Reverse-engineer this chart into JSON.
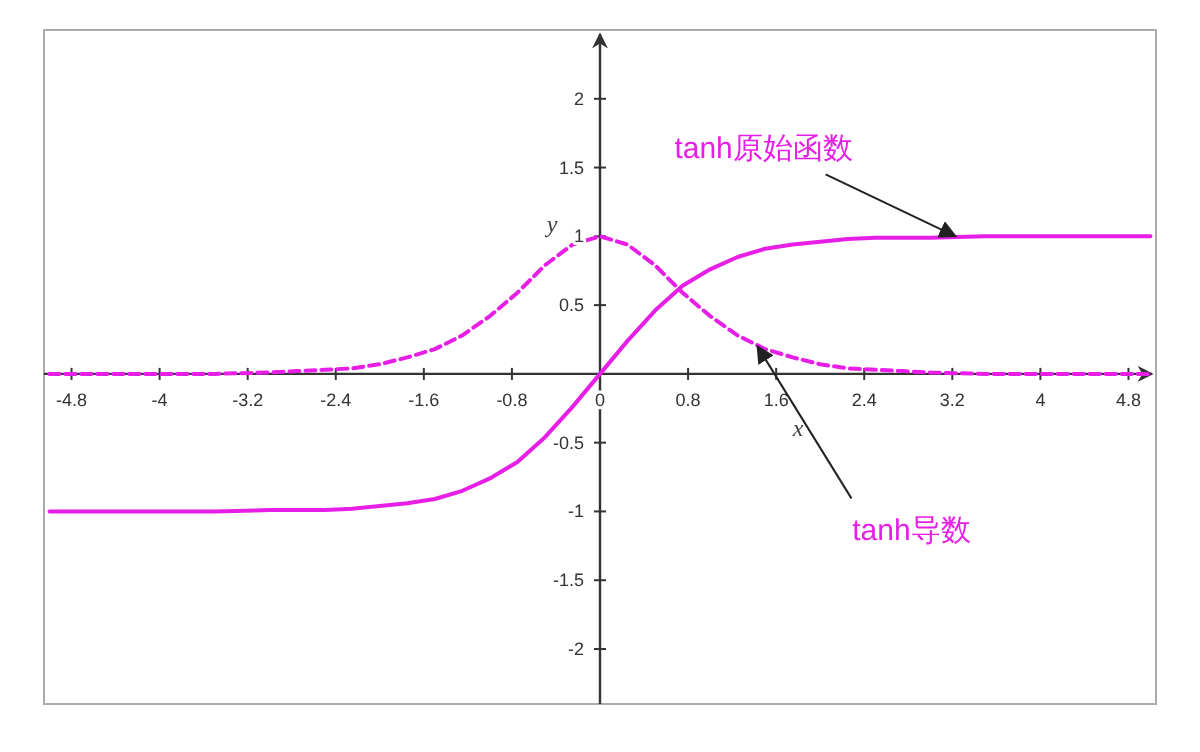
{
  "chart_data": {
    "type": "line",
    "xlabel": "x",
    "ylabel": "y",
    "xlim": [
      -5.05,
      5.05
    ],
    "ylim": [
      -2.4,
      2.5
    ],
    "xticks": [
      -4.8,
      -4,
      -3.2,
      -2.4,
      -1.6,
      -0.8,
      0,
      0.8,
      1.6,
      2.4,
      3.2,
      4,
      4.8
    ],
    "yticks": [
      -2,
      -1.5,
      -1,
      -0.5,
      0.5,
      1,
      1.5,
      2
    ],
    "grid": false,
    "annotations": [
      {
        "text": "tanh原始函数",
        "x": 3.23,
        "y": 1.0
      },
      {
        "text": "tanh导数",
        "x": 1.43,
        "y": 0.2
      }
    ],
    "series": [
      {
        "color": "#e61ee6",
        "line_style": "solid",
        "x": [
          -5,
          -4.5,
          -4,
          -3.5,
          -3,
          -2.75,
          -2.5,
          -2.25,
          -2,
          -1.75,
          -1.5,
          -1.25,
          -1,
          -0.75,
          -0.5,
          -0.25,
          0,
          0.25,
          0.5,
          0.75,
          1,
          1.25,
          1.5,
          1.75,
          2,
          2.25,
          2.5,
          2.75,
          3,
          3.5,
          4,
          4.5,
          5
        ],
        "values": [
          -1.0,
          -1.0,
          -1.0,
          -1.0,
          -0.99,
          -0.99,
          -0.99,
          -0.98,
          -0.96,
          -0.94,
          -0.91,
          -0.85,
          -0.76,
          -0.64,
          -0.46,
          -0.24,
          0,
          0.24,
          0.46,
          0.64,
          0.76,
          0.85,
          0.91,
          0.94,
          0.96,
          0.98,
          0.99,
          0.99,
          0.99,
          1.0,
          1.0,
          1.0,
          1.0
        ]
      },
      {
        "color": "#e61ee6",
        "line_style": "dashed",
        "x": [
          -5,
          -4.5,
          -4,
          -3.5,
          -3,
          -2.75,
          -2.5,
          -2.25,
          -2,
          -1.75,
          -1.5,
          -1.25,
          -1,
          -0.75,
          -0.5,
          -0.25,
          0,
          0.25,
          0.5,
          0.75,
          1,
          1.25,
          1.5,
          1.75,
          2,
          2.25,
          2.5,
          2.75,
          3,
          3.5,
          4,
          4.5,
          5
        ],
        "values": [
          0.0,
          0.0,
          0.0,
          0.0,
          0.01,
          0.02,
          0.03,
          0.04,
          0.07,
          0.12,
          0.18,
          0.28,
          0.42,
          0.59,
          0.79,
          0.94,
          1.0,
          0.94,
          0.79,
          0.59,
          0.42,
          0.28,
          0.18,
          0.12,
          0.07,
          0.04,
          0.03,
          0.02,
          0.01,
          0.0,
          0.0,
          0.0,
          0.0
        ]
      }
    ]
  }
}
